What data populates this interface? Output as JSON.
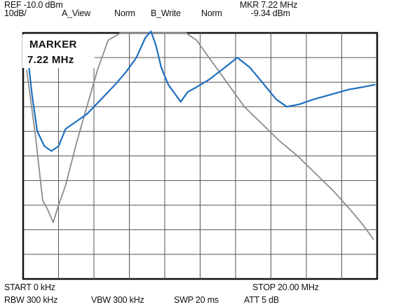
{
  "header": {
    "ref": "REF -10.0 dBm",
    "scale": "10dB/",
    "trace_a": "A_View",
    "norm_a": "Norm",
    "trace_b": "B_Write",
    "norm_b": "Norm",
    "mkr_freq": "MKR 7.22 MHz",
    "mkr_level": "-9.34 dBm"
  },
  "marker": {
    "title": "MARKER",
    "freq": "7.22 MHz"
  },
  "footer": {
    "start": "START 0 kHz",
    "stop": "STOP 20.00 MHz",
    "rbw": "RBW 300 kHz",
    "vbw": "VBW 300 kHz",
    "swp": "SWP 20 ms",
    "att": "ATT 5 dB"
  },
  "colors": {
    "grid": "#555555",
    "frame": "#111111",
    "trace_a": "#8c8c8c",
    "trace_b": "#1f6fbf"
  },
  "chart_data": {
    "type": "line",
    "x_unit": "MHz",
    "xlim": [
      0,
      20
    ],
    "ylim": [
      -110,
      -10
    ],
    "grid": true,
    "x_divisions": 10,
    "y_divisions": 10,
    "series": [
      {
        "trace": "A",
        "color": "#8c8c8c",
        "points": [
          [
            0.2,
            -25
          ],
          [
            0.7,
            -52
          ],
          [
            1.1,
            -78
          ],
          [
            1.4,
            -82
          ],
          [
            1.7,
            -87
          ],
          [
            2.0,
            -80
          ],
          [
            2.4,
            -72
          ],
          [
            3.0,
            -55
          ],
          [
            3.6,
            -40
          ],
          [
            4.2,
            -25
          ],
          [
            4.8,
            -13
          ],
          [
            5.5,
            -10
          ],
          [
            6.5,
            -10
          ],
          [
            7.5,
            -10
          ],
          [
            8.5,
            -10
          ],
          [
            9.2,
            -10
          ],
          [
            9.8,
            -13
          ],
          [
            10.5,
            -20
          ],
          [
            11.5,
            -30
          ],
          [
            12.5,
            -40
          ],
          [
            13.5,
            -47
          ],
          [
            14.5,
            -54
          ],
          [
            15.5,
            -60
          ],
          [
            16.5,
            -67
          ],
          [
            17.5,
            -74
          ],
          [
            18.5,
            -82
          ],
          [
            19.2,
            -88
          ],
          [
            19.8,
            -94
          ]
        ]
      },
      {
        "trace": "B",
        "color": "#1f6fbf",
        "points": [
          [
            0.3,
            -22
          ],
          [
            0.5,
            -35
          ],
          [
            0.8,
            -50
          ],
          [
            1.2,
            -56
          ],
          [
            1.6,
            -58
          ],
          [
            2.0,
            -56
          ],
          [
            2.4,
            -49
          ],
          [
            3.0,
            -46
          ],
          [
            3.6,
            -43
          ],
          [
            4.4,
            -37
          ],
          [
            5.2,
            -31
          ],
          [
            5.8,
            -26
          ],
          [
            6.4,
            -20
          ],
          [
            6.9,
            -12
          ],
          [
            7.22,
            -9.34
          ],
          [
            7.5,
            -15
          ],
          [
            7.8,
            -24
          ],
          [
            8.2,
            -31
          ],
          [
            8.6,
            -35
          ],
          [
            8.9,
            -38
          ],
          [
            9.3,
            -34
          ],
          [
            9.8,
            -32
          ],
          [
            10.5,
            -29
          ],
          [
            11.4,
            -24
          ],
          [
            12.1,
            -20
          ],
          [
            12.8,
            -24
          ],
          [
            13.5,
            -30
          ],
          [
            14.3,
            -37
          ],
          [
            14.9,
            -40
          ],
          [
            15.6,
            -39
          ],
          [
            16.4,
            -37
          ],
          [
            17.4,
            -35
          ],
          [
            18.4,
            -33
          ],
          [
            19.2,
            -32
          ],
          [
            19.9,
            -31
          ]
        ]
      }
    ]
  }
}
